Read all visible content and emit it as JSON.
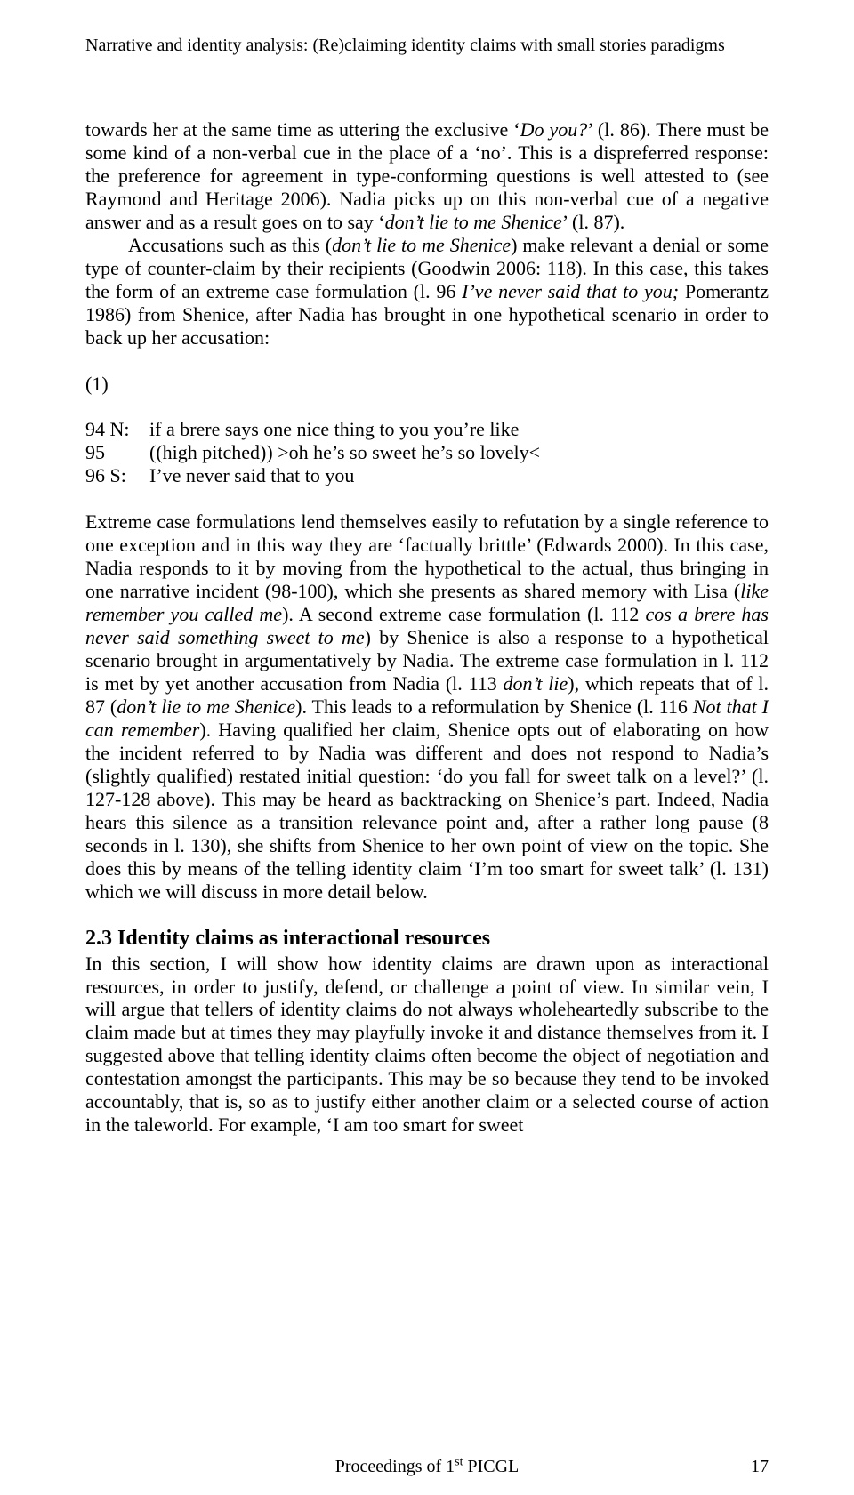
{
  "running_head": "Narrative and identity analysis: (Re)claiming identity claims with small stories paradigms",
  "para1_a": "towards her at the same time as uttering the exclusive ‘",
  "para1_i1": "Do you?",
  "para1_b": "’ (l. 86). There must be some kind of a non-verbal cue in the place of a ‘no’. This is a dispreferred response: the preference for agreement in type-conforming questions is well attested to (see Raymond and Heritage 2006). Nadia picks up on this non-verbal cue of a negative answer and as a result goes on to say ‘",
  "para1_i2": "don’t lie to me Shenice",
  "para1_c": "’ (l. 87).",
  "para2_a": "Accusations such as this (",
  "para2_i1": "don’t lie to me Shenice",
  "para2_b": ") make relevant a denial or some type of counter-claim by their recipients (Goodwin 2006: 118). In this case, this takes the form of an extreme case formulation (l. 96 ",
  "para2_i2": "I’ve never said that to you;",
  "para2_c": " Pomerantz 1986) from Shenice, after Nadia has brought in one hypothetical scenario in order to back up her accusation:",
  "example_label": "(1)",
  "ex94_ln": "94 N:",
  "ex94_txt": "if a brere says one nice thing to you you’re like",
  "ex95_ln": "95",
  "ex95_txt": "((high pitched)) >oh he’s so sweet he’s so lovely<",
  "ex96_ln": "96 S:",
  "ex96_txt": "I’ve never said that to you",
  "para3_a": "Extreme case formulations lend themselves easily to refutation by a single reference to one exception and in this way they are ‘factually brittle’ (Edwards 2000). In this case, Nadia responds to it by moving from the hypothetical to the actual, thus bringing in one narrative incident (98-100), which she presents as shared memory with Lisa (",
  "para3_i1": "like remember you called me",
  "para3_b": "). A second extreme case formulation (l. 112 ",
  "para3_i2": "cos a brere has never said something sweet to me",
  "para3_c": ") by Shenice is also a response to a hypothetical scenario brought in argumentatively by Nadia. The extreme case formulation in l. 112 is met by yet another accusation from Nadia (l. 113 ",
  "para3_i3": "don’t lie",
  "para3_d": "), which repeats that of l. 87 (",
  "para3_i4": "don’t lie to me Shenice",
  "para3_e": "). This leads to a reformulation by Shenice (l. 116 ",
  "para3_i5": "Not that I can remember",
  "para3_f": "). Having qualified her claim, Shenice opts out of elaborating on how the incident referred to by Nadia was different and does not respond to Nadia’s (slightly qualified) restated initial question: ‘do you fall for sweet talk on a level?’ (l. 127-128 above). This may be heard as backtracking on Shenice’s part. Indeed, Nadia hears this silence as a transition relevance point and, after a rather long pause (8 seconds in l. 130), she shifts from Shenice to her own point of view on the topic. She does this by means of the telling identity claim ‘I’m too smart for sweet talk’ (l. 131) which we will discuss in more detail below.",
  "subhead": "2.3 Identity claims as interactional resources",
  "para4": "In this section, I will show how identity claims are drawn upon as interactional resources, in order to justify, defend, or challenge a point of view. In similar vein, I will argue that tellers of identity claims do not always wholeheartedly subscribe to the claim made but at times they may playfully invoke it and distance themselves from it. I suggested above that telling identity claims often become the object of negotiation and contestation amongst the participants. This may be so because they tend to be invoked accountably, that is, so as to justify either another claim or a selected course of action in the taleworld. For example, ‘I am too smart for sweet",
  "footer_center_a": "Proceedings of 1",
  "footer_center_sup": "st",
  "footer_center_b": " PICGL",
  "footer_page": "17"
}
